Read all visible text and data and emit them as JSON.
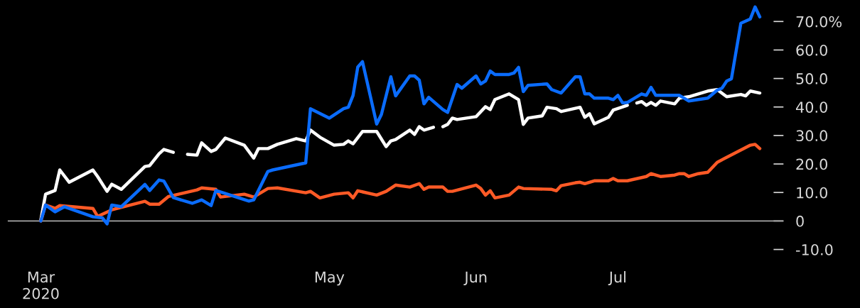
{
  "chart_data": {
    "type": "line",
    "xlim": [
      "2020-02-23",
      "2020-08-05"
    ],
    "xticks": [
      {
        "value": "2020-03-01",
        "label": "Mar\n2020"
      },
      {
        "value": "2020-05-01",
        "label": "May"
      },
      {
        "value": "2020-06-01",
        "label": "Jun"
      },
      {
        "value": "2020-07-01",
        "label": "Jul"
      }
    ],
    "ylim": [
      -10,
      77
    ],
    "yticks": [
      {
        "value": -10,
        "label": "-10.0"
      },
      0,
      {
        "value": 10,
        "label": "10.0"
      },
      {
        "value": 20,
        "label": "20.0"
      },
      {
        "value": 30,
        "label": "30.0"
      },
      {
        "value": 40,
        "label": "40.0"
      },
      {
        "value": 50,
        "label": "50.0"
      },
      {
        "value": 60,
        "label": "60.0"
      },
      {
        "value": 70,
        "label": "70.0%"
      }
    ],
    "ref_lines": [
      {
        "axis": "y",
        "value": 0,
        "color": "#a6a6a6"
      }
    ],
    "series": [
      {
        "color": "#ffffff",
        "x": [
          "2020-03-01",
          "2020-03-02",
          "2020-03-04",
          "2020-03-05",
          "2020-03-07",
          "2020-03-12",
          "2020-03-13",
          "2020-03-15",
          "2020-03-16",
          "2020-03-18",
          "2020-03-23",
          "2020-03-24",
          "2020-03-26",
          "2020-03-27",
          "2020-03-29",
          "2020-03-31",
          "2020-04-01",
          "2020-04-03",
          "2020-04-04",
          "2020-04-06",
          "2020-04-07",
          "2020-04-09",
          "2020-04-13",
          "2020-04-15",
          "2020-04-16",
          "2020-04-18",
          "2020-04-20",
          "2020-04-24",
          "2020-04-26",
          "2020-04-27",
          "2020-04-29",
          "2020-05-02",
          "2020-05-04",
          "2020-05-05",
          "2020-05-06",
          "2020-05-08",
          "2020-05-11",
          "2020-05-13",
          "2020-05-14",
          "2020-05-15",
          "2020-05-18",
          "2020-05-19",
          "2020-05-20",
          "2020-05-21",
          "2020-05-23",
          "2020-05-24",
          "2020-05-25",
          "2020-05-26",
          "2020-05-27",
          "2020-05-28",
          "2020-06-01",
          "2020-06-03",
          "2020-06-04",
          "2020-06-05",
          "2020-06-08",
          "2020-06-10",
          "2020-06-11",
          "2020-06-12",
          "2020-06-15",
          "2020-06-16",
          "2020-06-18",
          "2020-06-19",
          "2020-06-23",
          "2020-06-24",
          "2020-06-25",
          "2020-06-26",
          "2020-06-29",
          "2020-06-30",
          "2020-07-03",
          "2020-07-04",
          "2020-07-05",
          "2020-07-06",
          "2020-07-07",
          "2020-07-08",
          "2020-07-09",
          "2020-07-10",
          "2020-07-13",
          "2020-07-14",
          "2020-07-16",
          "2020-07-20",
          "2020-07-22",
          "2020-07-24",
          "2020-07-27",
          "2020-07-28",
          "2020-07-29",
          "2020-07-31"
        ],
        "values": [
          0.4,
          9.4,
          10.7,
          17.9,
          13.6,
          17.9,
          15.6,
          10.4,
          12.9,
          11.1,
          19.1,
          19.4,
          23.6,
          25.1,
          24.1,
          null,
          23.4,
          23.1,
          27.4,
          24.4,
          25.1,
          29.1,
          26.6,
          22.1,
          25.4,
          25.4,
          26.9,
          28.9,
          28.1,
          31.9,
          29.4,
          26.6,
          26.9,
          28.1,
          27.1,
          31.4,
          31.4,
          26.1,
          28.1,
          28.6,
          31.9,
          30.4,
          33.1,
          31.9,
          32.9,
          null,
          33.1,
          33.9,
          36.1,
          35.6,
          36.6,
          40.1,
          39.1,
          42.6,
          44.6,
          42.6,
          33.9,
          36.1,
          36.9,
          39.9,
          39.4,
          38.4,
          39.9,
          36.4,
          37.6,
          34.1,
          36.4,
          38.9,
          40.6,
          null,
          41.4,
          41.9,
          40.6,
          41.6,
          40.6,
          42.1,
          41.1,
          43.1,
          43.6,
          45.6,
          46.1,
          43.6,
          44.4,
          43.9,
          45.6,
          44.9
        ]
      },
      {
        "color": "#ff5a26",
        "x": [
          "2020-03-01",
          "2020-03-02",
          "2020-03-04",
          "2020-03-05",
          "2020-03-12",
          "2020-03-13",
          "2020-03-16",
          "2020-03-23",
          "2020-03-24",
          "2020-03-26",
          "2020-03-28",
          "2020-04-03",
          "2020-04-04",
          "2020-04-07",
          "2020-04-08",
          "2020-04-13",
          "2020-04-15",
          "2020-04-18",
          "2020-04-20",
          "2020-04-26",
          "2020-04-27",
          "2020-04-29",
          "2020-05-02",
          "2020-05-05",
          "2020-05-06",
          "2020-05-07",
          "2020-05-11",
          "2020-05-13",
          "2020-05-15",
          "2020-05-18",
          "2020-05-20",
          "2020-05-21",
          "2020-05-22",
          "2020-05-25",
          "2020-05-26",
          "2020-05-27",
          "2020-06-01",
          "2020-06-02",
          "2020-06-03",
          "2020-06-04",
          "2020-06-05",
          "2020-06-08",
          "2020-06-10",
          "2020-06-11",
          "2020-06-17",
          "2020-06-18",
          "2020-06-19",
          "2020-06-22",
          "2020-06-23",
          "2020-06-24",
          "2020-06-26",
          "2020-06-29",
          "2020-06-30",
          "2020-07-01",
          "2020-07-03",
          "2020-07-07",
          "2020-07-08",
          "2020-07-10",
          "2020-07-13",
          "2020-07-14",
          "2020-07-15",
          "2020-07-16",
          "2020-07-18",
          "2020-07-20",
          "2020-07-22",
          "2020-07-29",
          "2020-07-30",
          "2020-07-31"
        ],
        "values": [
          0,
          5.6,
          4.4,
          5.4,
          4.4,
          1.6,
          3.9,
          6.9,
          5.9,
          5.9,
          8.6,
          10.9,
          11.6,
          11.1,
          8.4,
          9.4,
          8.4,
          11.4,
          11.6,
          9.9,
          10.4,
          8.1,
          9.4,
          9.9,
          8.1,
          10.6,
          9.1,
          10.4,
          12.6,
          11.9,
          13.1,
          11.1,
          11.9,
          11.9,
          10.4,
          10.4,
          12.6,
          11.4,
          9.1,
          10.6,
          8.1,
          9.1,
          11.9,
          11.4,
          11.1,
          10.6,
          12.4,
          13.4,
          13.6,
          13.1,
          14.1,
          14.1,
          14.9,
          14.1,
          14.1,
          15.6,
          16.6,
          15.6,
          16.1,
          16.6,
          16.6,
          15.6,
          16.6,
          17.1,
          20.6,
          26.6,
          26.9,
          25.4
        ]
      },
      {
        "color": "#0a6cff",
        "x": [
          "2020-03-01",
          "2020-03-02",
          "2020-03-04",
          "2020-03-06",
          "2020-03-12",
          "2020-03-14",
          "2020-03-15",
          "2020-03-16",
          "2020-03-18",
          "2020-03-23",
          "2020-03-24",
          "2020-03-26",
          "2020-03-27",
          "2020-03-29",
          "2020-04-02",
          "2020-04-04",
          "2020-04-06",
          "2020-04-07",
          "2020-04-14",
          "2020-04-15",
          "2020-04-18",
          "2020-04-19",
          "2020-04-26",
          "2020-04-27",
          "2020-05-01",
          "2020-05-04",
          "2020-05-05",
          "2020-05-06",
          "2020-05-07",
          "2020-05-08",
          "2020-05-11",
          "2020-05-12",
          "2020-05-14",
          "2020-05-15",
          "2020-05-18",
          "2020-05-19",
          "2020-05-20",
          "2020-05-21",
          "2020-05-22",
          "2020-05-25",
          "2020-05-26",
          "2020-05-28",
          "2020-05-29",
          "2020-06-01",
          "2020-06-02",
          "2020-06-03",
          "2020-06-04",
          "2020-06-05",
          "2020-06-08",
          "2020-06-09",
          "2020-06-10",
          "2020-06-11",
          "2020-06-12",
          "2020-06-16",
          "2020-06-17",
          "2020-06-19",
          "2020-06-22",
          "2020-06-23",
          "2020-06-24",
          "2020-06-25",
          "2020-06-26",
          "2020-06-29",
          "2020-06-30",
          "2020-07-01",
          "2020-07-02",
          "2020-07-03",
          "2020-07-06",
          "2020-07-07",
          "2020-07-08",
          "2020-07-09",
          "2020-07-14",
          "2020-07-16",
          "2020-07-20",
          "2020-07-22",
          "2020-07-23",
          "2020-07-24",
          "2020-07-25",
          "2020-07-27",
          "2020-07-29",
          "2020-07-30",
          "2020-07-31"
        ],
        "values": [
          0,
          5.6,
          3.2,
          5,
          1.5,
          1.1,
          -1,
          5.6,
          5,
          12.8,
          10.7,
          14.4,
          14,
          8.2,
          6.2,
          7.4,
          5.4,
          10.7,
          7,
          7.4,
          17.4,
          17.9,
          20.4,
          39.4,
          36.1,
          39.4,
          39.9,
          44,
          54,
          55.9,
          34,
          37.4,
          50.6,
          43.9,
          50.9,
          50.9,
          49.4,
          41.1,
          43.4,
          39.1,
          38.1,
          47.9,
          46.6,
          50.9,
          48.1,
          49.1,
          52.6,
          51.4,
          51.4,
          51.9,
          53.9,
          45.4,
          47.6,
          48.1,
          46.1,
          44.9,
          50.6,
          50.6,
          44.6,
          44.6,
          43.1,
          43.1,
          42.6,
          44.1,
          41.4,
          41.6,
          44.6,
          44.1,
          46.9,
          44.1,
          44.1,
          42.1,
          43.1,
          45.9,
          46.6,
          49.1,
          49.9,
          69.4,
          70.9,
          75.1,
          71.6
        ]
      }
    ]
  }
}
